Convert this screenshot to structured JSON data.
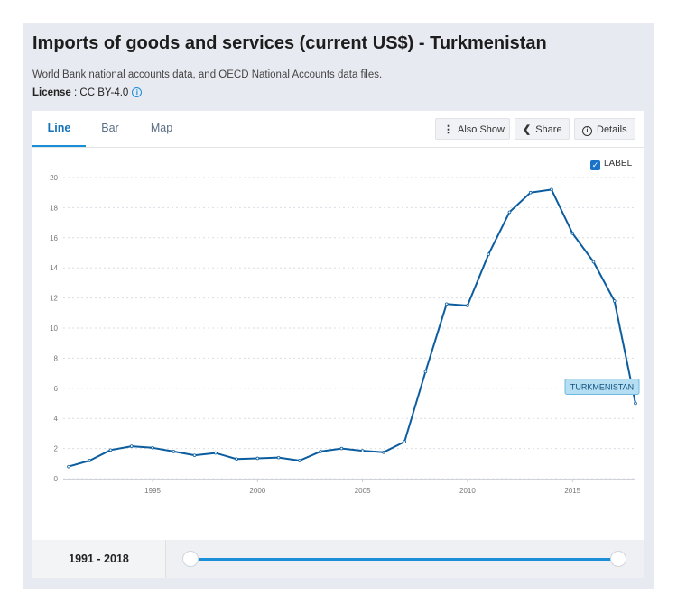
{
  "header": {
    "title": "Imports of goods and services (current US$) - Turkmenistan",
    "source": "World Bank national accounts data, and OECD National Accounts data files.",
    "license_label": "License",
    "license_value": " : CC BY-4.0"
  },
  "tabs": [
    "Line",
    "Bar",
    "Map"
  ],
  "active_tab": "Line",
  "toolbar": {
    "also_show": "Also Show",
    "share": "Share",
    "details": "Details"
  },
  "label_toggle": {
    "text": "LABEL",
    "checked": true
  },
  "series_label": "TURKMENISTAN",
  "footer": {
    "range": "1991 - 2018"
  },
  "colors": {
    "line": "#0b5da0",
    "accent": "#1a8fd8",
    "badge_bg": "#b6def3",
    "badge_border": "#6fb9df"
  },
  "chart_data": {
    "type": "line",
    "title": "Imports of goods and services (current US$) - Turkmenistan",
    "xlabel": "",
    "ylabel": "",
    "xlim": [
      1991,
      2018
    ],
    "ylim": [
      0,
      20
    ],
    "x_ticks": [
      1995,
      2000,
      2005,
      2010,
      2015
    ],
    "y_ticks": [
      0,
      2,
      4,
      6,
      8,
      10,
      12,
      14,
      16,
      18,
      20
    ],
    "grid": true,
    "series": [
      {
        "name": "TURKMENISTAN",
        "x": [
          1991,
          1992,
          1993,
          1994,
          1995,
          1996,
          1997,
          1998,
          1999,
          2000,
          2001,
          2002,
          2003,
          2004,
          2005,
          2006,
          2007,
          2008,
          2009,
          2010,
          2011,
          2012,
          2013,
          2014,
          2015,
          2016,
          2017,
          2018
        ],
        "values": [
          0.8,
          1.2,
          1.9,
          2.15,
          2.05,
          1.8,
          1.55,
          1.7,
          1.3,
          1.35,
          1.4,
          1.2,
          1.8,
          2.0,
          1.85,
          1.75,
          2.45,
          7.1,
          11.6,
          11.5,
          14.9,
          17.7,
          19.0,
          19.2,
          16.3,
          14.4,
          11.8,
          5.0
        ]
      }
    ]
  }
}
